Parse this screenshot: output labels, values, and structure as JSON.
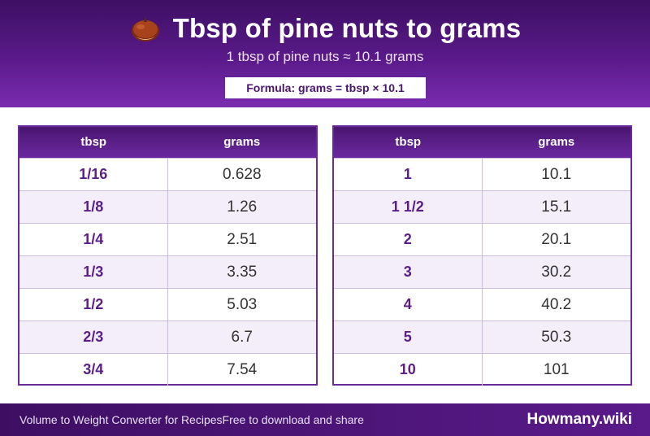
{
  "header": {
    "icon": "chestnut-icon",
    "title": "Tbsp of pine nuts to grams",
    "subtitle": "1 tbsp of pine nuts ≈ 10.1 grams",
    "formula": "Formula: grams = tbsp × 10.1"
  },
  "tables": {
    "left": {
      "headers": [
        "tbsp",
        "grams"
      ],
      "rows": [
        {
          "tbsp": "1/16",
          "grams": "0.628"
        },
        {
          "tbsp": "1/8",
          "grams": "1.26"
        },
        {
          "tbsp": "1/4",
          "grams": "2.51"
        },
        {
          "tbsp": "1/3",
          "grams": "3.35"
        },
        {
          "tbsp": "1/2",
          "grams": "5.03"
        },
        {
          "tbsp": "2/3",
          "grams": "6.7"
        },
        {
          "tbsp": "3/4",
          "grams": "7.54"
        }
      ]
    },
    "right": {
      "headers": [
        "tbsp",
        "grams"
      ],
      "rows": [
        {
          "tbsp": "1",
          "grams": "10.1"
        },
        {
          "tbsp": "1 1/2",
          "grams": "15.1"
        },
        {
          "tbsp": "2",
          "grams": "20.1"
        },
        {
          "tbsp": "3",
          "grams": "30.2"
        },
        {
          "tbsp": "4",
          "grams": "40.2"
        },
        {
          "tbsp": "5",
          "grams": "50.3"
        },
        {
          "tbsp": "10",
          "grams": "101"
        }
      ]
    }
  },
  "footer": {
    "left_text": "Volume to Weight Converter for RecipesFree to download and share",
    "brand": "Howmany.wiki"
  },
  "colors": {
    "brand_purple": "#5a1a8a",
    "dark_purple": "#3d0f63",
    "row_alt": "#f3eefa"
  }
}
